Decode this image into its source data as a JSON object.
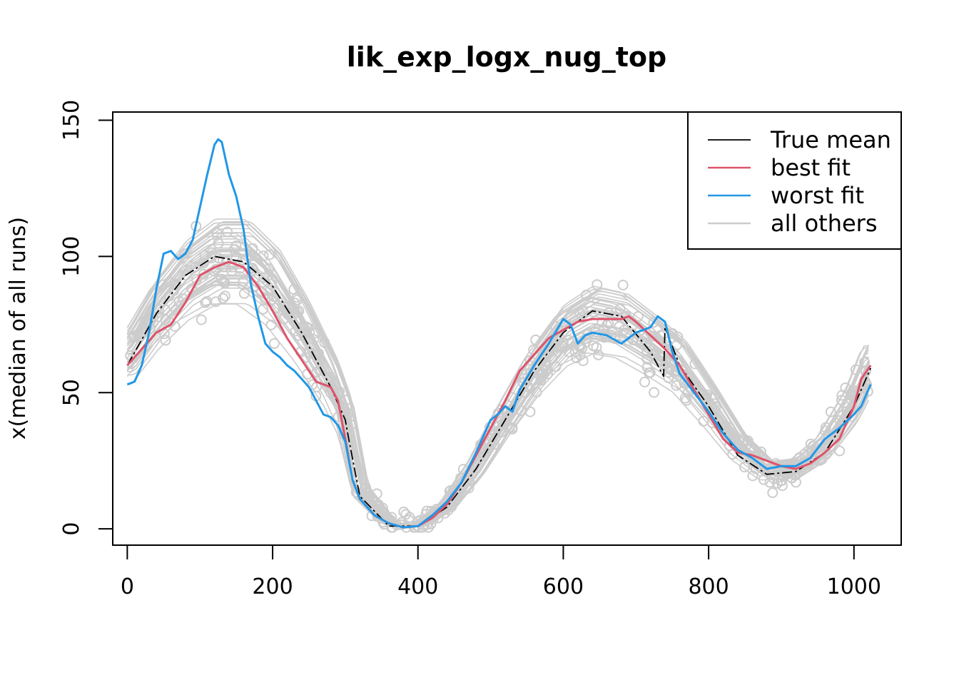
{
  "chart_data": {
    "type": "line",
    "title": "lik_exp_logx_nug_top",
    "xlabel": "",
    "ylabel": "x(median of all runs)",
    "xlim": [
      -20,
      1065
    ],
    "ylim": [
      -6,
      153
    ],
    "x_ticks": [
      0,
      200,
      400,
      600,
      800,
      1000
    ],
    "y_ticks": [
      0,
      50,
      100,
      150
    ],
    "legend_position": "top-right",
    "grid": false,
    "legend": [
      {
        "name": "True mean",
        "color": "#000000"
      },
      {
        "name": "best fit",
        "color": "#DF536B"
      },
      {
        "name": "worst fit",
        "color": "#2297E6"
      },
      {
        "name": "all others",
        "color": "#CCCCCC"
      }
    ],
    "series": [
      {
        "name": "True mean",
        "color": "#000000",
        "x": [
          0,
          40,
          80,
          120,
          160,
          200,
          240,
          280,
          300,
          304,
          320,
          360,
          400,
          440,
          480,
          520,
          560,
          600,
          640,
          680,
          720,
          738,
          740,
          760,
          800,
          840,
          880,
          920,
          960,
          1000,
          1023
        ],
        "y": [
          60,
          79,
          93,
          100,
          98,
          89,
          72,
          52,
          40,
          34,
          12,
          1,
          1,
          8,
          22,
          40,
          58,
          72,
          80,
          78,
          65,
          56,
          74,
          60,
          45,
          27,
          20,
          21,
          28,
          45,
          59
        ]
      },
      {
        "name": "best fit",
        "color": "#DF536B",
        "x": [
          0,
          20,
          40,
          60,
          80,
          100,
          120,
          140,
          160,
          180,
          200,
          220,
          240,
          260,
          280,
          290,
          300,
          310,
          320,
          340,
          360,
          380,
          400,
          420,
          440,
          460,
          480,
          500,
          520,
          540,
          560,
          580,
          600,
          620,
          640,
          660,
          680,
          690,
          700,
          720,
          740,
          760,
          780,
          800,
          820,
          840,
          860,
          880,
          900,
          920,
          940,
          960,
          980,
          1000,
          1010,
          1023
        ],
        "y": [
          60,
          66,
          72,
          75,
          83,
          93,
          96,
          98,
          96,
          89,
          80,
          70,
          62,
          54,
          52,
          47,
          33,
          18,
          11,
          5,
          2,
          0.5,
          1,
          4,
          9,
          17,
          27,
          37,
          47,
          58,
          64,
          70,
          73,
          76,
          77,
          77,
          77,
          78,
          76,
          71,
          66,
          60,
          51,
          42,
          33,
          28,
          27,
          25,
          23,
          22,
          24,
          28,
          33,
          45,
          55,
          60
        ]
      },
      {
        "name": "worst fit",
        "color": "#2297E6",
        "x": [
          0,
          10,
          20,
          30,
          40,
          50,
          60,
          70,
          80,
          90,
          100,
          110,
          120,
          125,
          130,
          140,
          150,
          160,
          170,
          180,
          190,
          200,
          210,
          220,
          230,
          240,
          250,
          260,
          270,
          280,
          290,
          300,
          310,
          320,
          340,
          360,
          380,
          400,
          420,
          440,
          460,
          480,
          500,
          510,
          520,
          530,
          540,
          560,
          580,
          600,
          610,
          620,
          630,
          640,
          660,
          680,
          700,
          720,
          730,
          740,
          750,
          760,
          780,
          800,
          820,
          840,
          860,
          880,
          900,
          920,
          940,
          960,
          980,
          1000,
          1010,
          1023
        ],
        "y": [
          53,
          54,
          60,
          72,
          88,
          101,
          102,
          99,
          101,
          106,
          118,
          130,
          141,
          143,
          142,
          130,
          122,
          110,
          90,
          78,
          68,
          65,
          63,
          60,
          58,
          55,
          52,
          47,
          42,
          41,
          38,
          32,
          18,
          11,
          5,
          2,
          0.5,
          1,
          5,
          10,
          17,
          28,
          40,
          42,
          45,
          43,
          51,
          60,
          68,
          77,
          75,
          68,
          71,
          72,
          71,
          68,
          72,
          74,
          78,
          76,
          65,
          57,
          50,
          43,
          35,
          29,
          26,
          22,
          23,
          23,
          26,
          33,
          37,
          42,
          45,
          53
        ]
      },
      {
        "name": "all others",
        "color": "#CCCCCC",
        "x": [
          0,
          40,
          80,
          120,
          160,
          200,
          240,
          280,
          300,
          320,
          360,
          400,
          440,
          480,
          520,
          560,
          600,
          640,
          680,
          720,
          760,
          800,
          840,
          880,
          920,
          960,
          1000,
          1023
        ],
        "y": [
          62,
          78,
          90,
          97,
          97,
          88,
          72,
          53,
          40,
          14,
          2,
          1,
          8,
          22,
          40,
          57,
          70,
          76,
          74,
          67,
          59,
          45,
          30,
          21,
          22,
          30,
          46,
          60
        ]
      }
    ]
  }
}
